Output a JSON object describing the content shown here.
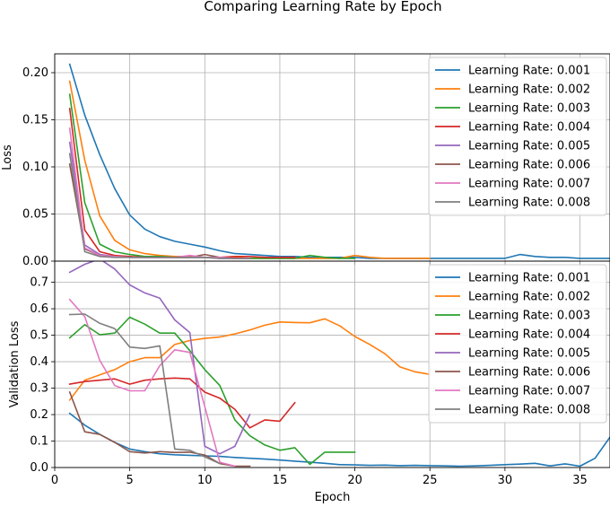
{
  "figure": {
    "title": "Comparing Learning Rate by Epoch"
  },
  "chart_data": [
    {
      "type": "line",
      "panel": "top",
      "xlabel": "",
      "ylabel": "Loss",
      "xlim": [
        0,
        37
      ],
      "ylim": [
        0,
        0.22
      ],
      "yticks": [
        0,
        0.05,
        0.1,
        0.15,
        0.2
      ],
      "ytick_labels": [
        "0.00",
        "0.05",
        "0.10",
        "0.15",
        "0.20"
      ],
      "grid": true,
      "legend": "top-right",
      "series": [
        {
          "name": "Learning Rate: 0.001",
          "color": "#1f77b4",
          "x": [
            1,
            2,
            3,
            4,
            5,
            6,
            7,
            8,
            9,
            10,
            11,
            12,
            13,
            14,
            15,
            16,
            17,
            18,
            19,
            20,
            21,
            22,
            23,
            24,
            25,
            26,
            27,
            28,
            29,
            30,
            31,
            32,
            33,
            34,
            35,
            36,
            37
          ],
          "y": [
            0.209,
            0.155,
            0.113,
            0.077,
            0.049,
            0.034,
            0.026,
            0.021,
            0.018,
            0.015,
            0.011,
            0.008,
            0.007,
            0.006,
            0.005,
            0.005,
            0.004,
            0.004,
            0.004,
            0.004,
            0.003,
            0.003,
            0.003,
            0.003,
            0.003,
            0.003,
            0.003,
            0.003,
            0.003,
            0.003,
            0.007,
            0.005,
            0.004,
            0.004,
            0.003,
            0.003,
            0.003
          ]
        },
        {
          "name": "Learning Rate: 0.002",
          "color": "#ff7f0e",
          "x": [
            1,
            2,
            3,
            4,
            5,
            6,
            7,
            8,
            9,
            10,
            11,
            12,
            13,
            14,
            15,
            16,
            17,
            18,
            19,
            20,
            21,
            22,
            23,
            24,
            25
          ],
          "y": [
            0.191,
            0.107,
            0.048,
            0.022,
            0.012,
            0.008,
            0.006,
            0.005,
            0.005,
            0.004,
            0.004,
            0.004,
            0.003,
            0.003,
            0.003,
            0.003,
            0.003,
            0.003,
            0.003,
            0.006,
            0.004,
            0.003,
            0.003,
            0.003,
            0.003
          ]
        },
        {
          "name": "Learning Rate: 0.003",
          "color": "#2ca02c",
          "x": [
            1,
            2,
            3,
            4,
            5,
            6,
            7,
            8,
            9,
            10,
            11,
            12,
            13,
            14,
            15,
            16,
            17,
            18,
            19,
            20
          ],
          "y": [
            0.177,
            0.062,
            0.018,
            0.01,
            0.007,
            0.005,
            0.005,
            0.004,
            0.004,
            0.004,
            0.004,
            0.003,
            0.003,
            0.003,
            0.003,
            0.003,
            0.006,
            0.004,
            0.003,
            0.003
          ]
        },
        {
          "name": "Learning Rate: 0.004",
          "color": "#d62728",
          "x": [
            1,
            2,
            3,
            4,
            5,
            6,
            7,
            8,
            9,
            10,
            11,
            12,
            13,
            14,
            15,
            16
          ],
          "y": [
            0.162,
            0.033,
            0.01,
            0.006,
            0.005,
            0.004,
            0.004,
            0.004,
            0.004,
            0.004,
            0.004,
            0.005,
            0.005,
            0.004,
            0.004,
            0.004
          ]
        },
        {
          "name": "Learning Rate: 0.005",
          "color": "#9467bd",
          "x": [
            1,
            2,
            3,
            4,
            5,
            6,
            7,
            8,
            9,
            10,
            11,
            12,
            13
          ],
          "y": [
            0.126,
            0.017,
            0.007,
            0.005,
            0.004,
            0.004,
            0.004,
            0.004,
            0.004,
            0.004,
            0.003,
            0.003,
            0.003
          ]
        },
        {
          "name": "Learning Rate: 0.006",
          "color": "#8c564b",
          "x": [
            1,
            2,
            3,
            4,
            5,
            6,
            7,
            8,
            9,
            10,
            11,
            12,
            13
          ],
          "y": [
            0.103,
            0.013,
            0.006,
            0.005,
            0.004,
            0.004,
            0.004,
            0.004,
            0.004,
            0.007,
            0.004,
            0.003,
            0.003
          ]
        },
        {
          "name": "Learning Rate: 0.007",
          "color": "#e377c2",
          "x": [
            1,
            2,
            3,
            4,
            5,
            6,
            7,
            8,
            9,
            10,
            11,
            12,
            13
          ],
          "y": [
            0.141,
            0.014,
            0.006,
            0.005,
            0.004,
            0.004,
            0.004,
            0.004,
            0.006,
            0.004,
            0.004,
            0.003,
            0.003
          ]
        },
        {
          "name": "Learning Rate: 0.008",
          "color": "#7f7f7f",
          "x": [
            1,
            2,
            3,
            4,
            5,
            6,
            7,
            8,
            9,
            10,
            11,
            12,
            13
          ],
          "y": [
            0.114,
            0.01,
            0.005,
            0.004,
            0.004,
            0.004,
            0.004,
            0.004,
            0.004,
            0.004,
            0.003,
            0.003,
            0.003
          ]
        }
      ]
    },
    {
      "type": "line",
      "panel": "bottom",
      "xlabel": "Epoch",
      "ylabel": "Validation Loss",
      "xlim": [
        0,
        37
      ],
      "ylim": [
        0,
        0.78
      ],
      "xticks": [
        0,
        5,
        10,
        15,
        20,
        25,
        30,
        35
      ],
      "xtick_labels": [
        "0",
        "5",
        "10",
        "15",
        "20",
        "25",
        "30",
        "35"
      ],
      "yticks": [
        0,
        0.1,
        0.2,
        0.3,
        0.4,
        0.5,
        0.6,
        0.7
      ],
      "ytick_labels": [
        "0.0",
        "0.1",
        "0.2",
        "0.3",
        "0.4",
        "0.5",
        "0.6",
        "0.7"
      ],
      "grid": true,
      "legend": "top-right",
      "series": [
        {
          "name": "Learning Rate: 0.001",
          "color": "#1f77b4",
          "x": [
            1,
            2,
            3,
            4,
            5,
            6,
            7,
            8,
            9,
            10,
            11,
            12,
            13,
            14,
            15,
            16,
            17,
            18,
            19,
            20,
            21,
            22,
            23,
            24,
            25,
            26,
            27,
            28,
            29,
            30,
            31,
            32,
            33,
            34,
            35,
            36,
            37
          ],
          "y": [
            0.205,
            0.16,
            0.125,
            0.095,
            0.07,
            0.06,
            0.052,
            0.048,
            0.046,
            0.044,
            0.042,
            0.038,
            0.035,
            0.032,
            0.028,
            0.024,
            0.02,
            0.016,
            0.011,
            0.01,
            0.008,
            0.009,
            0.007,
            0.008,
            0.007,
            0.006,
            0.005,
            0.006,
            0.008,
            0.011,
            0.013,
            0.016,
            0.006,
            0.014,
            0.005,
            0.035,
            0.115
          ]
        },
        {
          "name": "Learning Rate: 0.002",
          "color": "#ff7f0e",
          "x": [
            1,
            2,
            3,
            4,
            5,
            6,
            7,
            8,
            9,
            10,
            11,
            12,
            13,
            14,
            15,
            16,
            17,
            18,
            19,
            20,
            21,
            22,
            23,
            24,
            25
          ],
          "y": [
            0.255,
            0.33,
            0.35,
            0.37,
            0.4,
            0.415,
            0.415,
            0.465,
            0.48,
            0.488,
            0.493,
            0.505,
            0.52,
            0.538,
            0.55,
            0.548,
            0.547,
            0.562,
            0.535,
            0.495,
            0.465,
            0.43,
            0.38,
            0.362,
            0.352
          ]
        },
        {
          "name": "Learning Rate: 0.003",
          "color": "#2ca02c",
          "x": [
            1,
            2,
            3,
            4,
            5,
            6,
            7,
            8,
            9,
            10,
            11,
            12,
            13,
            14,
            15,
            16,
            17,
            18,
            19,
            20
          ],
          "y": [
            0.49,
            0.54,
            0.502,
            0.508,
            0.568,
            0.542,
            0.508,
            0.508,
            0.442,
            0.37,
            0.31,
            0.18,
            0.12,
            0.085,
            0.065,
            0.075,
            0.012,
            0.058,
            0.058,
            0.058
          ]
        },
        {
          "name": "Learning Rate: 0.004",
          "color": "#d62728",
          "x": [
            1,
            2,
            3,
            4,
            5,
            6,
            7,
            8,
            9,
            10,
            11,
            12,
            13,
            14,
            15,
            16
          ],
          "y": [
            0.315,
            0.325,
            0.33,
            0.335,
            0.315,
            0.33,
            0.335,
            0.338,
            0.335,
            0.285,
            0.262,
            0.22,
            0.15,
            0.18,
            0.175,
            0.245
          ]
        },
        {
          "name": "Learning Rate: 0.005",
          "color": "#9467bd",
          "x": [
            1,
            2,
            3,
            4,
            5,
            6,
            7,
            8,
            9,
            10,
            11,
            12,
            13
          ],
          "y": [
            0.738,
            0.768,
            0.788,
            0.75,
            0.69,
            0.66,
            0.64,
            0.558,
            0.51,
            0.08,
            0.052,
            0.08,
            0.2
          ]
        },
        {
          "name": "Learning Rate: 0.006",
          "color": "#8c564b",
          "x": [
            1,
            2,
            3,
            4,
            5,
            6,
            7,
            8,
            9,
            10,
            11,
            12,
            13
          ],
          "y": [
            0.285,
            0.135,
            0.125,
            0.095,
            0.06,
            0.055,
            0.06,
            0.057,
            0.058,
            0.047,
            0.015,
            0.005,
            0.005
          ]
        },
        {
          "name": "Learning Rate: 0.007",
          "color": "#e377c2",
          "x": [
            1,
            2,
            3,
            4,
            5,
            6,
            7,
            8,
            9,
            10,
            11,
            12
          ],
          "y": [
            0.635,
            0.57,
            0.405,
            0.31,
            0.29,
            0.29,
            0.385,
            0.445,
            0.435,
            0.23,
            0.02,
            0.005
          ]
        },
        {
          "name": "Learning Rate: 0.008",
          "color": "#7f7f7f",
          "x": [
            1,
            2,
            3,
            4,
            5,
            6,
            7,
            8,
            9,
            10,
            11
          ],
          "y": [
            0.578,
            0.58,
            0.545,
            0.525,
            0.455,
            0.45,
            0.46,
            0.07,
            0.065,
            0.04,
            0.015
          ]
        }
      ]
    }
  ]
}
